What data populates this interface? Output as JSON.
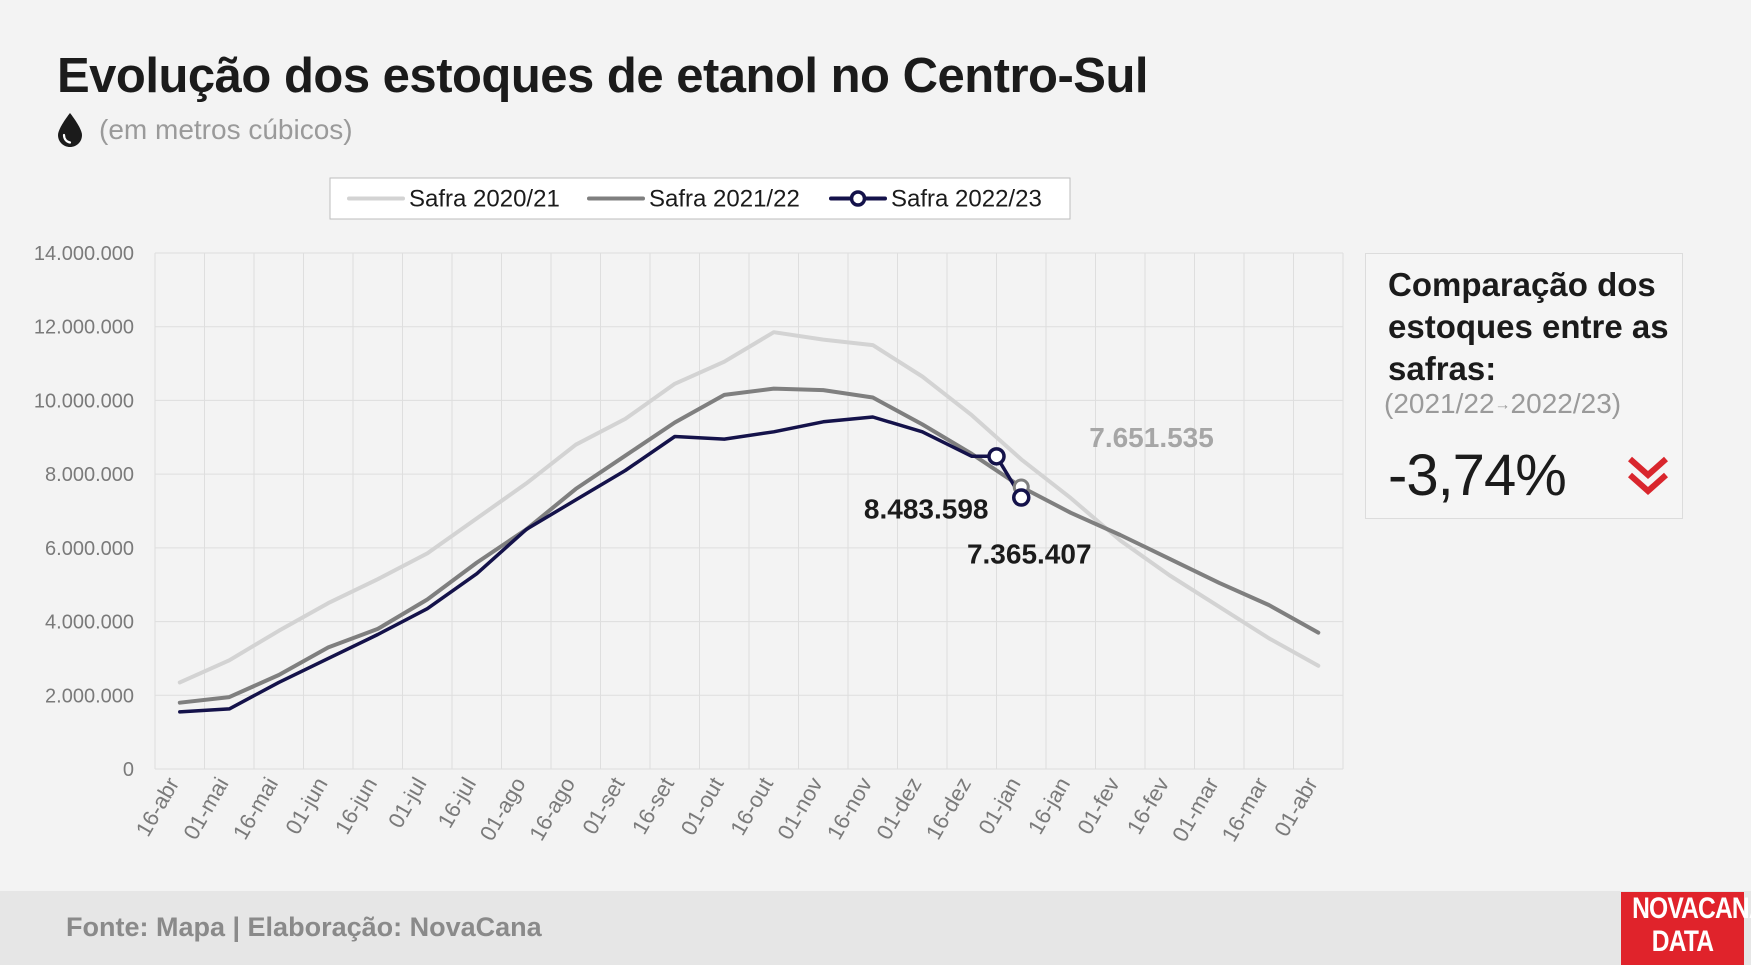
{
  "title": "Evolução dos estoques de etanol no Centro-Sul",
  "subtitle": "(em metros cúbicos)",
  "panel": {
    "title": "Comparação dos estoques entre as safras:",
    "range_from": "(2021/22",
    "range_arrow": "→",
    "range_to": "2022/23)",
    "value": "-3,74%",
    "accent": "#d9262d"
  },
  "footer": {
    "source": "Fonte: Mapa | Elaboração: NovaCana"
  },
  "logo": {
    "line1": "NOVACANA",
    "line2": "DATA",
    "color": "#e0232b"
  },
  "chart_data": {
    "type": "line",
    "categories": [
      "16-abr",
      "01-mai",
      "16-mai",
      "01-jun",
      "16-jun",
      "01-jul",
      "16-jul",
      "01-ago",
      "16-ago",
      "01-set",
      "16-set",
      "01-out",
      "16-out",
      "01-nov",
      "16-nov",
      "01-dez",
      "16-dez",
      "01-jan",
      "16-jan",
      "01-fev",
      "16-fev",
      "01-mar",
      "16-mar",
      "01-abr"
    ],
    "ylim": [
      0,
      14000000
    ],
    "yticks": [
      0,
      2000000,
      4000000,
      6000000,
      8000000,
      10000000,
      12000000,
      14000000
    ],
    "ytick_labels": [
      "0",
      "2.000.000",
      "4.000.000",
      "6.000.000",
      "8.000.000",
      "10.000.000",
      "12.000.000",
      "14.000.000"
    ],
    "grid": true,
    "legend_position": "top-center",
    "series": [
      {
        "name": "Safra 2020/21",
        "color": "#d3d3d3",
        "x": [
          0,
          1,
          2,
          3,
          4,
          5,
          6,
          7,
          8,
          9,
          10,
          11,
          12,
          13,
          14,
          15,
          16,
          17,
          18,
          19,
          20,
          21,
          22,
          23
        ],
        "values": [
          2350000,
          2950000,
          3750000,
          4500000,
          5150000,
          5850000,
          6800000,
          7750000,
          8800000,
          9500000,
          10450000,
          11050000,
          11850000,
          11650000,
          11500000,
          10650000,
          9600000,
          8400000,
          7350000,
          6200000,
          5250000,
          4400000,
          3550000,
          2800000
        ]
      },
      {
        "name": "Safra 2021/22",
        "color": "#7f7f7f",
        "x": [
          0,
          1,
          2,
          3,
          4,
          5,
          6,
          7,
          8,
          9,
          10,
          11,
          12,
          13,
          14,
          15,
          16,
          17,
          18,
          19,
          20,
          21,
          22,
          23
        ],
        "values": [
          1800000,
          1950000,
          2550000,
          3300000,
          3800000,
          4600000,
          5600000,
          6500000,
          7600000,
          8500000,
          9400000,
          10150000,
          10320000,
          10280000,
          10080000,
          9350000,
          8550000,
          7651535,
          6950000,
          6350000,
          5700000,
          5050000,
          4450000,
          3700000
        ]
      },
      {
        "name": "Safra 2022/23",
        "color": "#14124a",
        "x": [
          0,
          1,
          2,
          3,
          4,
          5,
          6,
          7,
          8,
          9,
          10,
          11,
          12,
          13,
          14,
          15,
          16,
          16.5,
          17
        ],
        "values": [
          1550000,
          1630000,
          2350000,
          3000000,
          3650000,
          4350000,
          5300000,
          6500000,
          7300000,
          8100000,
          9020000,
          8950000,
          9150000,
          9420000,
          9550000,
          9150000,
          8483598,
          8483598,
          7365407
        ]
      }
    ],
    "annotations": [
      {
        "text": "7.651.535",
        "x": 17,
        "y": 7651535,
        "series": "Safra 2021/22",
        "color": "#a6a6a6"
      },
      {
        "text": "8.483.598",
        "x": 16.5,
        "y": 8483598,
        "series": "Safra 2022/23",
        "color": "#1b1b1b"
      },
      {
        "text": "7.365.407",
        "x": 17,
        "y": 7365407,
        "series": "Safra 2022/23",
        "color": "#1b1b1b"
      }
    ]
  }
}
